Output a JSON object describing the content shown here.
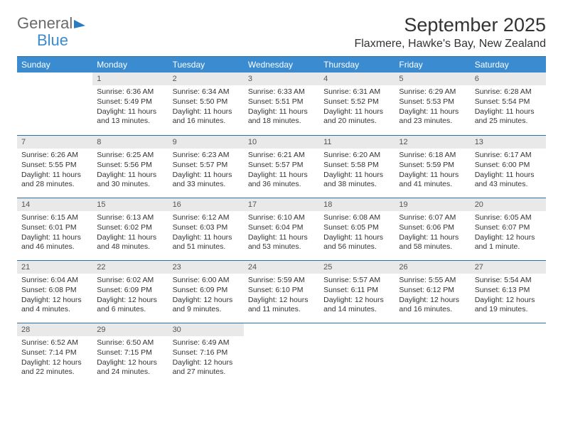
{
  "brand": {
    "part1": "General",
    "part2": "Blue"
  },
  "title": "September 2025",
  "location": "Flaxmere, Hawke's Bay, New Zealand",
  "colors": {
    "header_bg": "#3a8bd0",
    "header_text": "#ffffff",
    "daynum_bg": "#e9e9e9",
    "rule": "#2a6fa8",
    "text": "#333333",
    "bg": "#ffffff"
  },
  "weekdays": [
    "Sunday",
    "Monday",
    "Tuesday",
    "Wednesday",
    "Thursday",
    "Friday",
    "Saturday"
  ],
  "weeks": [
    [
      {
        "n": "",
        "sr": "",
        "ss": "",
        "dl": ""
      },
      {
        "n": "1",
        "sr": "6:36 AM",
        "ss": "5:49 PM",
        "dl": "11 hours and 13 minutes."
      },
      {
        "n": "2",
        "sr": "6:34 AM",
        "ss": "5:50 PM",
        "dl": "11 hours and 16 minutes."
      },
      {
        "n": "3",
        "sr": "6:33 AM",
        "ss": "5:51 PM",
        "dl": "11 hours and 18 minutes."
      },
      {
        "n": "4",
        "sr": "6:31 AM",
        "ss": "5:52 PM",
        "dl": "11 hours and 20 minutes."
      },
      {
        "n": "5",
        "sr": "6:29 AM",
        "ss": "5:53 PM",
        "dl": "11 hours and 23 minutes."
      },
      {
        "n": "6",
        "sr": "6:28 AM",
        "ss": "5:54 PM",
        "dl": "11 hours and 25 minutes."
      }
    ],
    [
      {
        "n": "7",
        "sr": "6:26 AM",
        "ss": "5:55 PM",
        "dl": "11 hours and 28 minutes."
      },
      {
        "n": "8",
        "sr": "6:25 AM",
        "ss": "5:56 PM",
        "dl": "11 hours and 30 minutes."
      },
      {
        "n": "9",
        "sr": "6:23 AM",
        "ss": "5:57 PM",
        "dl": "11 hours and 33 minutes."
      },
      {
        "n": "10",
        "sr": "6:21 AM",
        "ss": "5:57 PM",
        "dl": "11 hours and 36 minutes."
      },
      {
        "n": "11",
        "sr": "6:20 AM",
        "ss": "5:58 PM",
        "dl": "11 hours and 38 minutes."
      },
      {
        "n": "12",
        "sr": "6:18 AM",
        "ss": "5:59 PM",
        "dl": "11 hours and 41 minutes."
      },
      {
        "n": "13",
        "sr": "6:17 AM",
        "ss": "6:00 PM",
        "dl": "11 hours and 43 minutes."
      }
    ],
    [
      {
        "n": "14",
        "sr": "6:15 AM",
        "ss": "6:01 PM",
        "dl": "11 hours and 46 minutes."
      },
      {
        "n": "15",
        "sr": "6:13 AM",
        "ss": "6:02 PM",
        "dl": "11 hours and 48 minutes."
      },
      {
        "n": "16",
        "sr": "6:12 AM",
        "ss": "6:03 PM",
        "dl": "11 hours and 51 minutes."
      },
      {
        "n": "17",
        "sr": "6:10 AM",
        "ss": "6:04 PM",
        "dl": "11 hours and 53 minutes."
      },
      {
        "n": "18",
        "sr": "6:08 AM",
        "ss": "6:05 PM",
        "dl": "11 hours and 56 minutes."
      },
      {
        "n": "19",
        "sr": "6:07 AM",
        "ss": "6:06 PM",
        "dl": "11 hours and 58 minutes."
      },
      {
        "n": "20",
        "sr": "6:05 AM",
        "ss": "6:07 PM",
        "dl": "12 hours and 1 minute."
      }
    ],
    [
      {
        "n": "21",
        "sr": "6:04 AM",
        "ss": "6:08 PM",
        "dl": "12 hours and 4 minutes."
      },
      {
        "n": "22",
        "sr": "6:02 AM",
        "ss": "6:09 PM",
        "dl": "12 hours and 6 minutes."
      },
      {
        "n": "23",
        "sr": "6:00 AM",
        "ss": "6:09 PM",
        "dl": "12 hours and 9 minutes."
      },
      {
        "n": "24",
        "sr": "5:59 AM",
        "ss": "6:10 PM",
        "dl": "12 hours and 11 minutes."
      },
      {
        "n": "25",
        "sr": "5:57 AM",
        "ss": "6:11 PM",
        "dl": "12 hours and 14 minutes."
      },
      {
        "n": "26",
        "sr": "5:55 AM",
        "ss": "6:12 PM",
        "dl": "12 hours and 16 minutes."
      },
      {
        "n": "27",
        "sr": "5:54 AM",
        "ss": "6:13 PM",
        "dl": "12 hours and 19 minutes."
      }
    ],
    [
      {
        "n": "28",
        "sr": "6:52 AM",
        "ss": "7:14 PM",
        "dl": "12 hours and 22 minutes."
      },
      {
        "n": "29",
        "sr": "6:50 AM",
        "ss": "7:15 PM",
        "dl": "12 hours and 24 minutes."
      },
      {
        "n": "30",
        "sr": "6:49 AM",
        "ss": "7:16 PM",
        "dl": "12 hours and 27 minutes."
      },
      {
        "n": "",
        "sr": "",
        "ss": "",
        "dl": ""
      },
      {
        "n": "",
        "sr": "",
        "ss": "",
        "dl": ""
      },
      {
        "n": "",
        "sr": "",
        "ss": "",
        "dl": ""
      },
      {
        "n": "",
        "sr": "",
        "ss": "",
        "dl": ""
      }
    ]
  ],
  "labels": {
    "sunrise": "Sunrise: ",
    "sunset": "Sunset: ",
    "daylight": "Daylight: "
  }
}
